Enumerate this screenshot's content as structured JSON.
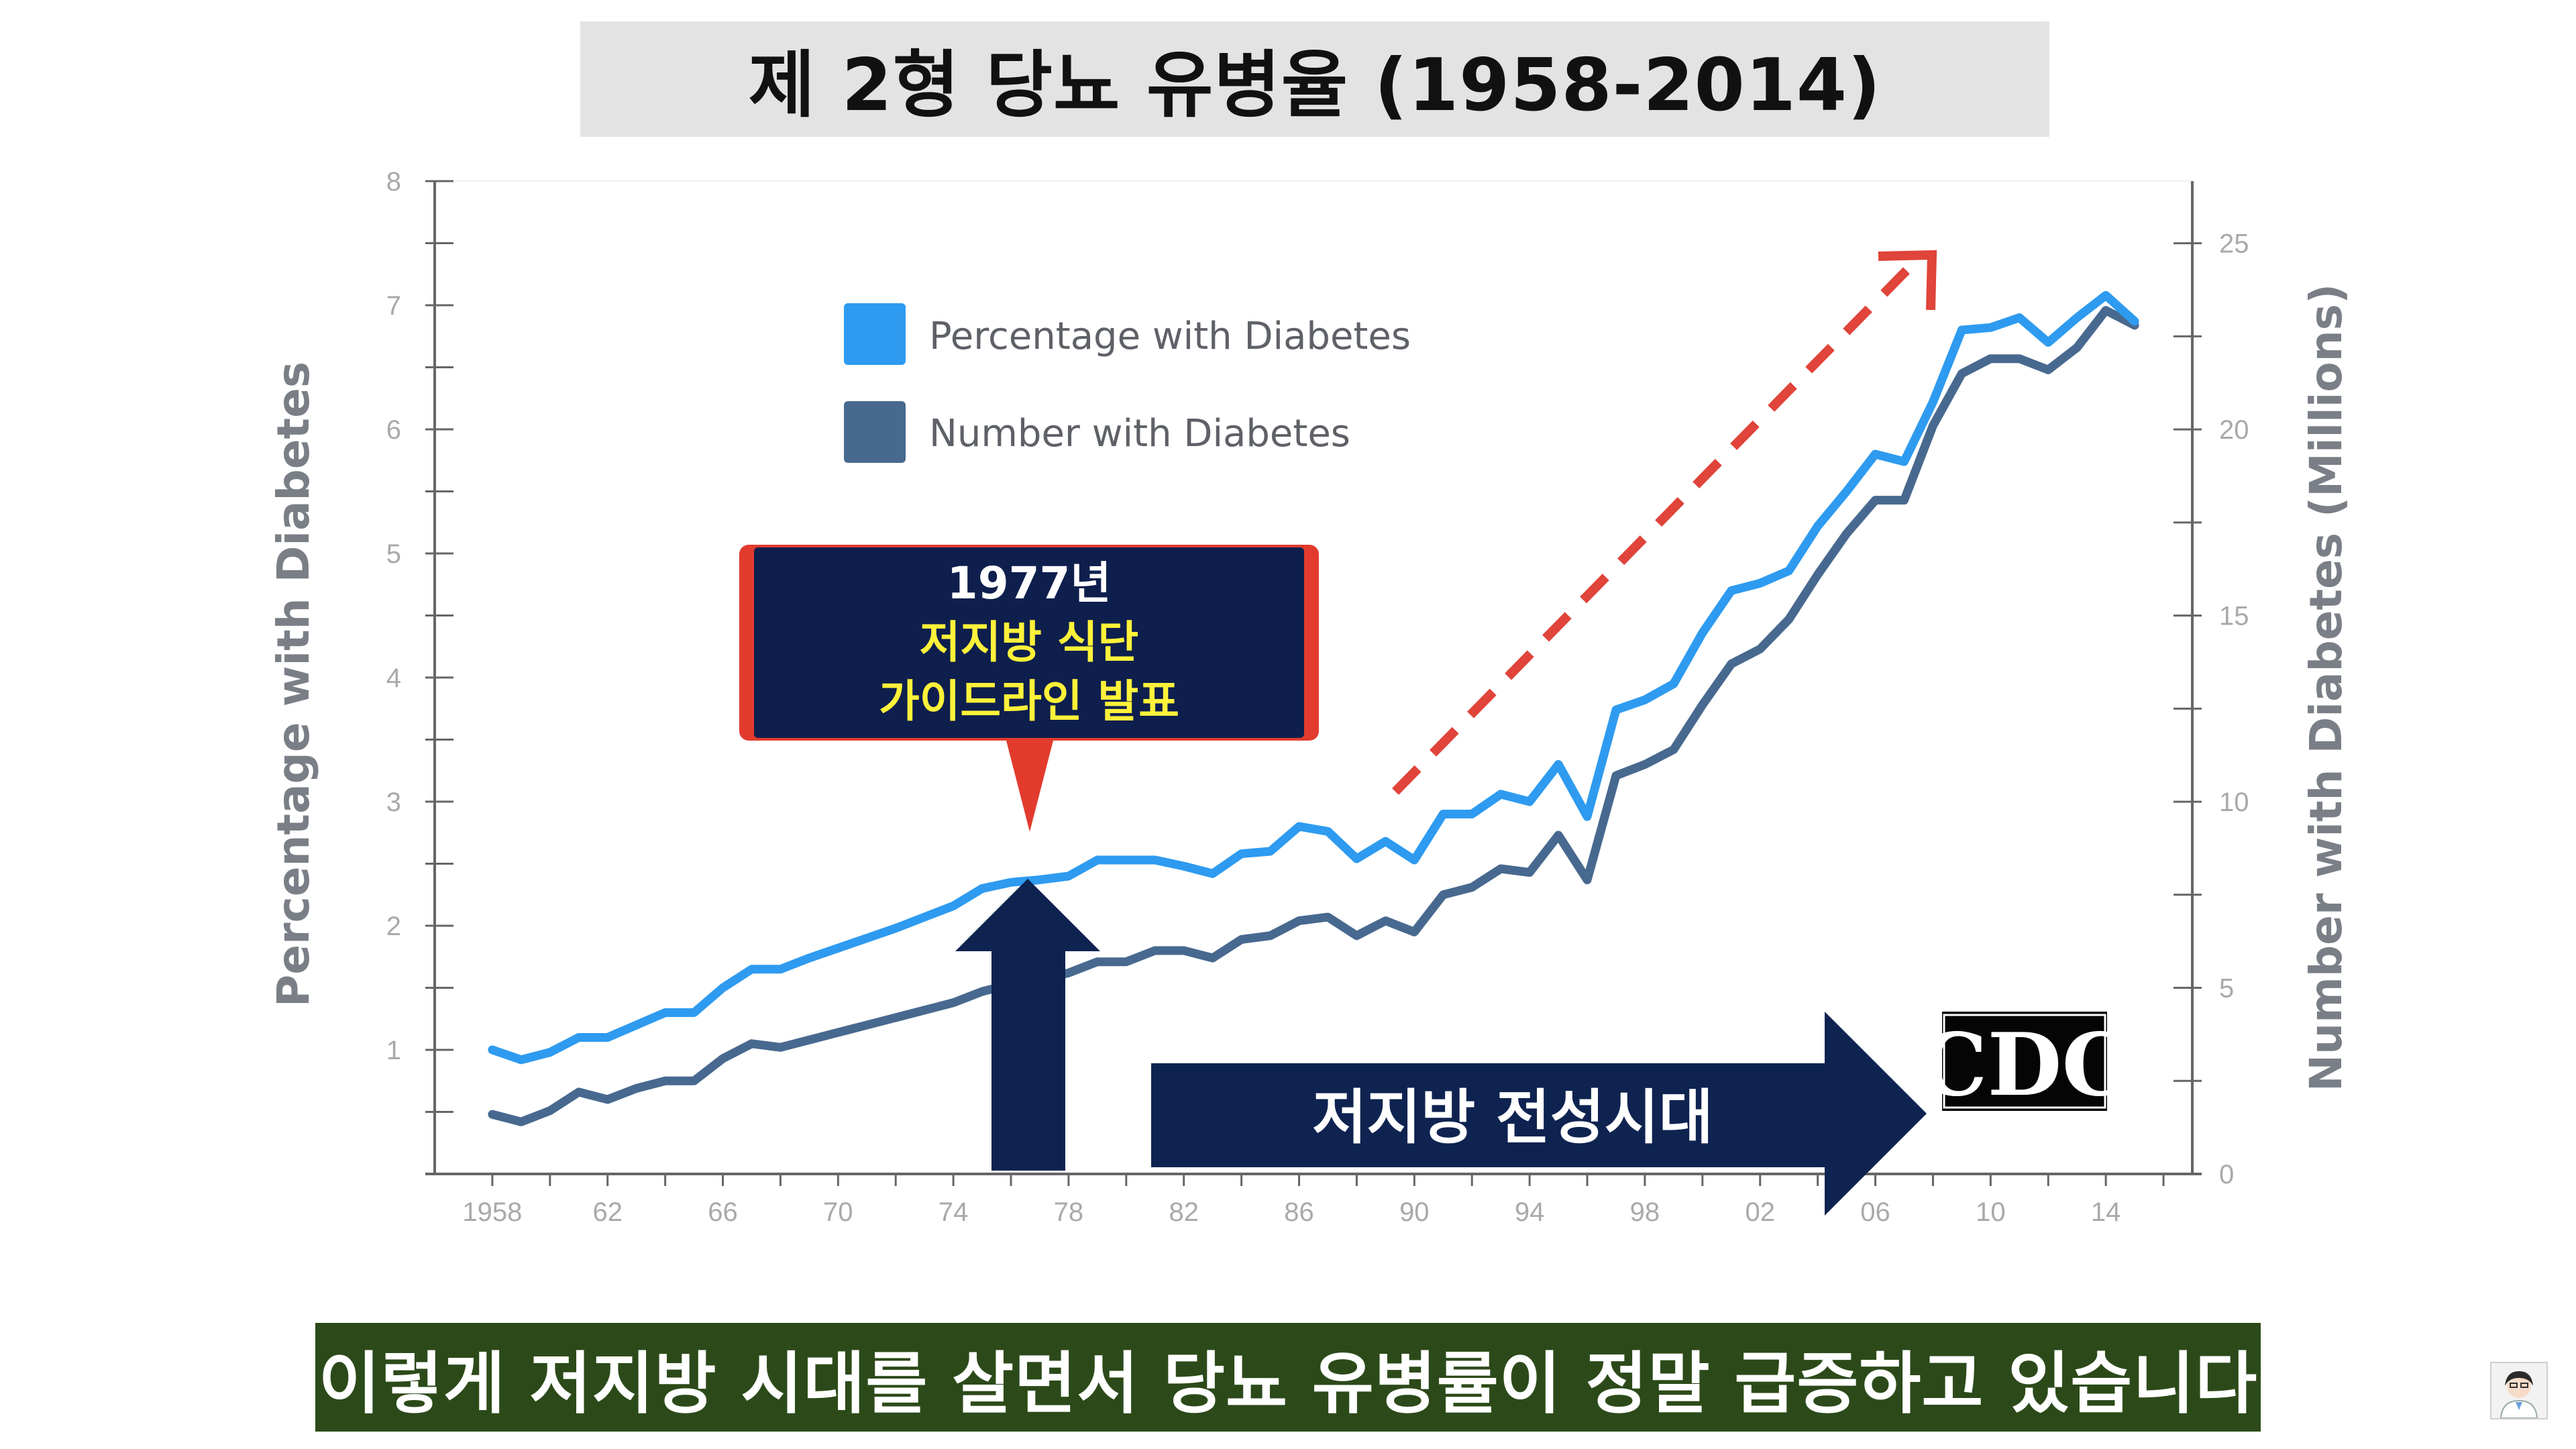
{
  "title": "제 2형 당뇨 유병율 (1958-2014)",
  "subtitle": "이렇게 저지방 시대를 살면서 당뇨 유병률이 정말 급증하고 있습니다",
  "colors": {
    "percentage_series": "#2e9bf0",
    "number_series": "#48698f",
    "callout_fill": "#0e1f4d",
    "callout_border": "#e23b2e",
    "trend_arrow": "#e0443a",
    "subtitle_bg": "#2c4a19",
    "title_bg": "#e3e3e3"
  },
  "annotations": {
    "callout_year": "1977년",
    "callout_line1": "저지방 식단",
    "callout_line2": "가이드라인 발표",
    "era_label": "저지방 전성시대",
    "logo_text": "CDC"
  },
  "icons": [
    "up-arrow-icon",
    "right-arrow-icon",
    "trend-arrow-icon",
    "cdc-logo",
    "avatar-icon"
  ],
  "chart_data": {
    "type": "line",
    "title": "",
    "xlabel": "",
    "ylabel": "Percentage with Diabetes",
    "y2label": "Number with Diabetes (Millions)",
    "xlim": [
      1956,
      2017
    ],
    "ylim": [
      0,
      8
    ],
    "y2lim": [
      0,
      26.67
    ],
    "x_ticks": [
      1958,
      1962,
      1966,
      1970,
      1974,
      1978,
      1982,
      1986,
      1990,
      1994,
      1998,
      2002,
      2006,
      2010,
      2014
    ],
    "x_tick_labels": [
      "1958",
      "62",
      "66",
      "70",
      "74",
      "78",
      "82",
      "86",
      "90",
      "94",
      "98",
      "02",
      "06",
      "10",
      "14"
    ],
    "y_ticks": [
      1,
      2,
      3,
      4,
      5,
      6,
      7,
      8
    ],
    "y_tick_labels": [
      "1",
      "2",
      "3",
      "4",
      "5",
      "6",
      "7",
      "8"
    ],
    "y2_ticks": [
      0,
      5,
      10,
      15,
      20,
      25
    ],
    "y2_tick_labels": [
      "0",
      "5",
      "10",
      "15",
      "20",
      "25"
    ],
    "grid": false,
    "legend_position": "top-left",
    "series": [
      {
        "name": "Percentage with Diabetes",
        "axis": "left",
        "x": [
          1958,
          1959,
          1960,
          1961,
          1962,
          1963,
          1964,
          1965,
          1966,
          1967,
          1968,
          1969,
          1970,
          1971,
          1972,
          1973,
          1974,
          1975,
          1976,
          1977,
          1978,
          1979,
          1980,
          1981,
          1982,
          1983,
          1984,
          1985,
          1986,
          1987,
          1988,
          1989,
          1990,
          1991,
          1992,
          1993,
          1994,
          1995,
          1996,
          1997,
          1998,
          1999,
          2000,
          2001,
          2002,
          2003,
          2004,
          2005,
          2006,
          2007,
          2008,
          2009,
          2010,
          2011,
          2012,
          2013,
          2014,
          2015
        ],
        "y": [
          1.0,
          0.92,
          0.98,
          1.1,
          1.1,
          1.2,
          1.3,
          1.3,
          1.5,
          1.65,
          1.65,
          1.74,
          1.82,
          1.9,
          1.98,
          2.07,
          2.16,
          2.3,
          2.35,
          2.37,
          2.4,
          2.53,
          2.53,
          2.53,
          2.48,
          2.42,
          2.58,
          2.6,
          2.8,
          2.76,
          2.54,
          2.68,
          2.53,
          2.9,
          2.9,
          3.06,
          3.0,
          3.3,
          2.88,
          3.74,
          3.82,
          3.95,
          4.36,
          4.7,
          4.76,
          4.86,
          5.22,
          5.5,
          5.8,
          5.74,
          6.22,
          6.8,
          6.82,
          6.9,
          6.7,
          6.9,
          7.08,
          6.87
        ]
      },
      {
        "name": "Number with Diabetes",
        "axis": "right",
        "x": [
          1958,
          1959,
          1960,
          1961,
          1962,
          1963,
          1964,
          1965,
          1966,
          1967,
          1968,
          1969,
          1970,
          1971,
          1972,
          1973,
          1974,
          1975,
          1976,
          1977,
          1978,
          1979,
          1980,
          1981,
          1982,
          1983,
          1984,
          1985,
          1986,
          1987,
          1988,
          1989,
          1990,
          1991,
          1992,
          1993,
          1994,
          1995,
          1996,
          1997,
          1998,
          1999,
          2000,
          2001,
          2002,
          2003,
          2004,
          2005,
          2006,
          2007,
          2008,
          2009,
          2010,
          2011,
          2012,
          2013,
          2014,
          2015
        ],
        "y": [
          1.6,
          1.4,
          1.7,
          2.2,
          2.0,
          2.3,
          2.5,
          2.5,
          3.1,
          3.5,
          3.4,
          3.6,
          3.8,
          4.0,
          4.2,
          4.4,
          4.6,
          4.9,
          5.1,
          5.2,
          5.4,
          5.7,
          5.7,
          6.0,
          6.0,
          5.8,
          6.3,
          6.4,
          6.8,
          6.9,
          6.4,
          6.8,
          6.5,
          7.5,
          7.7,
          8.2,
          8.1,
          9.1,
          7.9,
          10.7,
          11.0,
          11.4,
          12.6,
          13.7,
          14.1,
          14.9,
          16.1,
          17.2,
          18.1,
          18.1,
          20.1,
          21.5,
          21.9,
          21.9,
          21.6,
          22.2,
          23.2,
          22.8
        ]
      }
    ]
  }
}
